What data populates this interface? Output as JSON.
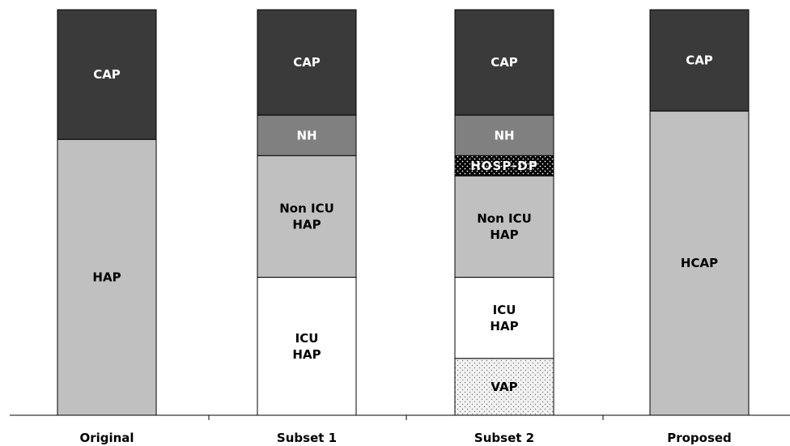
{
  "chart_data": {
    "type": "stacked-bar",
    "categories": [
      "Original",
      "Subset 1",
      "Subset 2",
      "Proposed"
    ],
    "columns": [
      {
        "name": "Original",
        "segments": [
          {
            "label": "CAP",
            "share": 0.32,
            "fill": "#3a3a3a",
            "text": "#ffffff"
          },
          {
            "label": "HAP",
            "share": 0.68,
            "fill": "#c0c0c0",
            "text": "#000000"
          }
        ]
      },
      {
        "name": "Subset 1",
        "segments": [
          {
            "label": "CAP",
            "share": 0.26,
            "fill": "#3a3a3a",
            "text": "#ffffff"
          },
          {
            "label": "NH",
            "share": 0.1,
            "fill": "#808080",
            "text": "#ffffff"
          },
          {
            "label": "Non ICU\nHAP",
            "share": 0.3,
            "fill": "#c0c0c0",
            "text": "#000000"
          },
          {
            "label": "ICU\nHAP",
            "share": 0.34,
            "fill": "#ffffff",
            "text": "#000000"
          }
        ]
      },
      {
        "name": "Subset 2",
        "segments": [
          {
            "label": "CAP",
            "share": 0.26,
            "fill": "#3a3a3a",
            "text": "#ffffff"
          },
          {
            "label": "NH",
            "share": 0.1,
            "fill": "#808080",
            "text": "#ffffff"
          },
          {
            "label": "HOSP-DP",
            "share": 0.05,
            "fill": "#000000",
            "text": "#ffffff",
            "pattern": "dots-white"
          },
          {
            "label": "Non ICU\nHAP",
            "share": 0.25,
            "fill": "#c0c0c0",
            "text": "#000000"
          },
          {
            "label": "ICU\nHAP",
            "share": 0.2,
            "fill": "#ffffff",
            "text": "#000000"
          },
          {
            "label": "VAP",
            "share": 0.14,
            "fill": "#e6e6e6",
            "text": "#000000",
            "pattern": "dots-gray"
          }
        ]
      },
      {
        "name": "Proposed",
        "segments": [
          {
            "label": "CAP",
            "share": 0.25,
            "fill": "#3a3a3a",
            "text": "#ffffff"
          },
          {
            "label": "HCAP",
            "share": 0.75,
            "fill": "#c0c0c0",
            "text": "#000000"
          }
        ]
      }
    ]
  }
}
